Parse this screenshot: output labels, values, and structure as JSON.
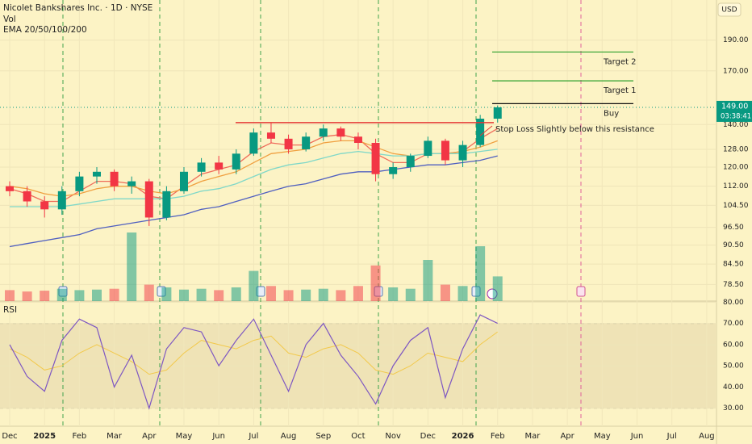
{
  "chart_data": {
    "type": "candlestick",
    "title": "Nicolet Bankshares Inc. · 1D · NYSE",
    "currency": "USD",
    "log": true,
    "grid": true,
    "xlim": [
      -0.556,
      40.56
    ],
    "ylim": [
      73.9,
      219.7
    ],
    "yticks": [
      {
        "value": 190,
        "label": "190.00"
      },
      {
        "value": 170,
        "label": "170.00"
      },
      {
        "value": 140,
        "label": "140.00"
      },
      {
        "value": 128,
        "label": "128.00"
      },
      {
        "value": 120,
        "label": "120.00"
      },
      {
        "value": 112,
        "label": "112.00"
      },
      {
        "value": 104.5,
        "label": "104.50"
      },
      {
        "value": 96.5,
        "label": "96.50"
      },
      {
        "value": 90.5,
        "label": "90.50"
      },
      {
        "value": 84.5,
        "label": "84.50"
      },
      {
        "value": 78.5,
        "label": "78.50"
      }
    ],
    "xticks": [
      {
        "value": 0,
        "label": "Dec"
      },
      {
        "value": 2,
        "label": "2025"
      },
      {
        "value": 4,
        "label": "Feb"
      },
      {
        "value": 6,
        "label": "Mar"
      },
      {
        "value": 8,
        "label": "Apr"
      },
      {
        "value": 10,
        "label": "May"
      },
      {
        "value": 12,
        "label": "Jun"
      },
      {
        "value": 14,
        "label": "Jul"
      },
      {
        "value": 16,
        "label": "Aug"
      },
      {
        "value": 18,
        "label": "Sep"
      },
      {
        "value": 20,
        "label": "Oct"
      },
      {
        "value": 22,
        "label": "Nov"
      },
      {
        "value": 24,
        "label": "Dec"
      },
      {
        "value": 26,
        "label": "2026"
      },
      {
        "value": 28,
        "label": "Feb"
      },
      {
        "value": 30,
        "label": "Mar"
      },
      {
        "value": 32,
        "label": "Apr"
      },
      {
        "value": 34,
        "label": "May"
      },
      {
        "value": 36,
        "label": "Jun"
      },
      {
        "value": 38,
        "label": "Jul"
      },
      {
        "value": 40,
        "label": "Aug"
      }
    ],
    "up_color": "#089981",
    "down_color": "#f23645",
    "candles": {
      "open": [
        112,
        110,
        106,
        103,
        110,
        116,
        118,
        112,
        114,
        100,
        110,
        118,
        122,
        119,
        126,
        136,
        133,
        128,
        134,
        138,
        134,
        131,
        117,
        120,
        125,
        132,
        123,
        130,
        143
      ],
      "high": [
        114,
        112,
        108,
        112,
        118,
        120,
        119,
        116,
        115,
        112,
        120,
        124,
        125,
        128,
        138,
        141,
        135,
        136,
        140,
        139,
        136,
        133,
        122,
        126,
        134,
        133,
        132,
        145,
        150
      ],
      "low": [
        108,
        104,
        100,
        101,
        108,
        113,
        110,
        109,
        97,
        99,
        109,
        116,
        117,
        117,
        125,
        131,
        126,
        127,
        132,
        132,
        128,
        114,
        115,
        118,
        124,
        121,
        120,
        129,
        141
      ],
      "close": [
        110,
        106,
        103,
        110,
        116,
        118,
        112,
        114,
        100,
        110,
        118,
        122,
        119,
        126,
        136,
        133,
        128,
        134,
        138,
        134,
        131,
        117,
        120,
        125,
        132,
        123,
        130,
        143,
        149
      ]
    },
    "volume": {
      "name": "Vol",
      "values": [
        40,
        35,
        38,
        45,
        40,
        42,
        45,
        250,
        60,
        50,
        42,
        45,
        40,
        50,
        110,
        55,
        40,
        42,
        45,
        40,
        55,
        130,
        50,
        45,
        150,
        60,
        55,
        200,
        90
      ]
    },
    "ema": {
      "name": "EMA 20/50/100/200",
      "series": [
        {
          "color": "#ef6c5a",
          "values": [
            111,
            109,
            106,
            106,
            110,
            114,
            114,
            113,
            108,
            107,
            112,
            117,
            119,
            121,
            127,
            131,
            130,
            130,
            134,
            135,
            133,
            126,
            122,
            122,
            126,
            126,
            127,
            133,
            138
          ]
        },
        {
          "color": "#f0a040",
          "values": [
            112,
            111,
            109,
            108,
            109,
            111,
            112,
            112,
            110,
            109,
            111,
            114,
            116,
            118,
            122,
            126,
            127,
            128,
            131,
            132,
            132,
            129,
            126,
            125,
            126,
            126,
            127,
            129,
            132
          ]
        },
        {
          "color": "#7fd8c8",
          "values": [
            104,
            104,
            104,
            104,
            105,
            106,
            107,
            107,
            107,
            107,
            108,
            110,
            111,
            113,
            116,
            119,
            121,
            122,
            124,
            126,
            127,
            126,
            125,
            125,
            126,
            126,
            126,
            127,
            128
          ]
        },
        {
          "color": "#4f5fc0",
          "values": [
            90,
            91,
            92,
            93,
            94,
            96,
            97,
            98,
            99,
            100,
            101,
            103,
            104,
            106,
            108,
            110,
            112,
            113,
            115,
            117,
            118,
            118,
            119,
            120,
            121,
            121,
            122,
            123,
            125
          ]
        }
      ]
    },
    "price_label": {
      "value": 149,
      "label": "149.00"
    },
    "countdown": "03:38:41",
    "annotations": [
      {
        "text": "Target 2",
        "value": 182,
        "color": "#2ca02c"
      },
      {
        "text": "Target 1",
        "value": 164,
        "color": "#2ca02c"
      },
      {
        "text": "Buy",
        "value": 151,
        "color": "#111111"
      },
      {
        "text": "Stop Loss Slightly below this resistance",
        "value": 141,
        "color": "#e53935"
      }
    ],
    "rsi": {
      "title": "RSI",
      "ylim": [
        21.5,
        80.5
      ],
      "yticks": [
        {
          "value": 80,
          "label": "80.00"
        },
        {
          "value": 70,
          "label": "70.00"
        },
        {
          "value": 60,
          "label": "60.00"
        },
        {
          "value": 50,
          "label": "50.00"
        },
        {
          "value": 40,
          "label": "40.00"
        },
        {
          "value": 30,
          "label": "30.00"
        }
      ],
      "band": [
        30,
        70
      ],
      "color": "#7e57c2",
      "values": [
        60,
        45,
        38,
        62,
        72,
        68,
        40,
        55,
        30,
        58,
        68,
        66,
        50,
        62,
        72,
        55,
        38,
        60,
        70,
        55,
        45,
        32,
        50,
        62,
        68,
        35,
        58,
        74,
        70
      ],
      "ma_color": "#f2c94c",
      "ma_values": [
        58,
        54,
        48,
        50,
        56,
        60,
        56,
        52,
        46,
        48,
        56,
        62,
        60,
        58,
        62,
        64,
        56,
        54,
        58,
        60,
        56,
        48,
        46,
        50,
        56,
        54,
        52,
        60,
        66
      ]
    }
  }
}
